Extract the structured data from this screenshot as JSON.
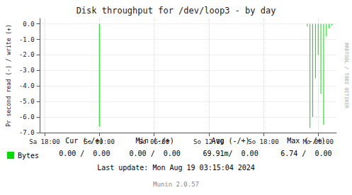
{
  "chart_data": {
    "type": "stem",
    "title": "Disk throughput for /dev/loop3 - by day",
    "ylabel": "Pr second read (-) / write (+)",
    "xlim": [
      -0.5,
      32
    ],
    "xticks": [
      {
        "value": 0,
        "label": "Sa 18:00"
      },
      {
        "value": 6,
        "label": "So 00:00"
      },
      {
        "value": 12,
        "label": "So 06:00"
      },
      {
        "value": 18,
        "label": "So 12:00"
      },
      {
        "value": 24,
        "label": "So 18:00"
      },
      {
        "value": 30,
        "label": "Mo 00:00"
      }
    ],
    "ylim": [
      -7.0,
      0.35
    ],
    "yticks": [
      {
        "value": 0.0,
        "label": "0.0"
      },
      {
        "value": -1.0,
        "label": "-1.0"
      },
      {
        "value": -2.0,
        "label": "-2.0"
      },
      {
        "value": -3.0,
        "label": "-3.0"
      },
      {
        "value": -4.0,
        "label": "-4.0"
      },
      {
        "value": -5.0,
        "label": "-5.0"
      },
      {
        "value": -6.0,
        "label": "-6.0"
      },
      {
        "value": -7.0,
        "label": "-7.0"
      }
    ],
    "grid": true,
    "legend": "bottom-left",
    "series": [
      {
        "name": "Bytes",
        "color": "#00dd00",
        "x": [
          6.0,
          28.8,
          29.1,
          29.4,
          29.7,
          30.0,
          30.3,
          30.6,
          30.9,
          31.2,
          31.5
        ],
        "values": [
          -6.6,
          -0.15,
          -6.7,
          -6.0,
          -3.5,
          -2.0,
          -4.5,
          -6.5,
          -0.8,
          -0.3,
          -0.1
        ]
      }
    ],
    "footer_table": {
      "header": [
        "Cur (-/+)",
        "Min (-/+)",
        "Avg (-/+)",
        "Max (-/+)"
      ],
      "row": [
        "0.00 /  0.00",
        "0.00 /  0.00",
        "69.91m/  0.00",
        "6.74 /  0.00"
      ]
    },
    "annotations": [
      "Last update: Mon Aug 19 03:15:04 2024",
      "Munin 2.0.57",
      "RRDTOOL / TOBI OETIKER"
    ]
  }
}
